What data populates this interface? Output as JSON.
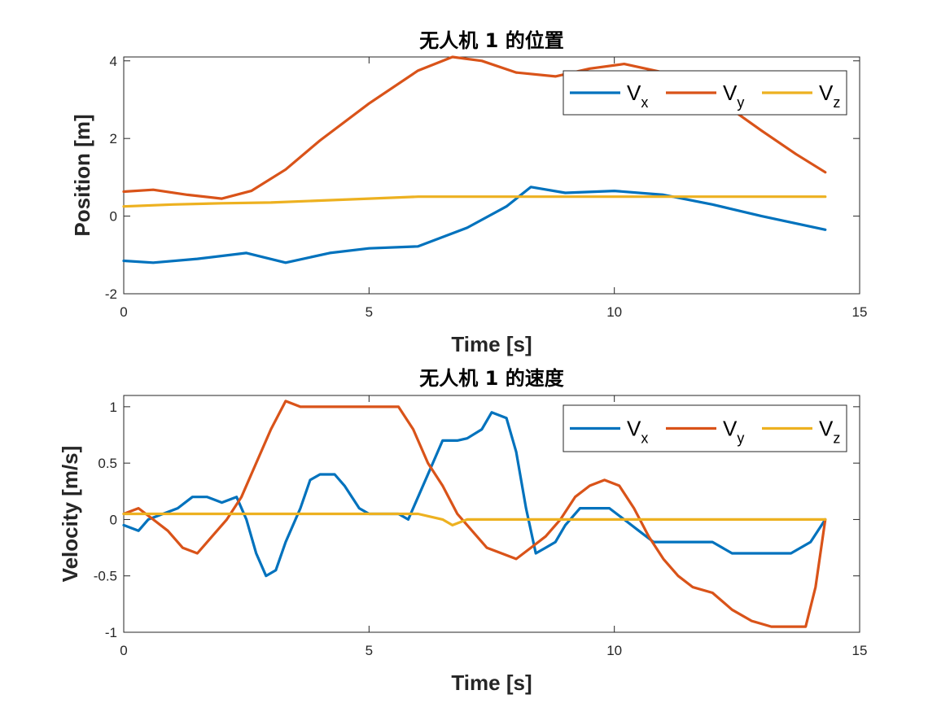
{
  "colors": {
    "Vx": "#0072BD",
    "Vy": "#D95319",
    "Vz": "#EDB120"
  },
  "chart_data": [
    {
      "type": "line",
      "title": "无人机 1 的位置",
      "xlabel": "Time [s]",
      "ylabel": "Position [m]",
      "xlim": [
        0,
        15
      ],
      "ylim": [
        -2,
        4.1
      ],
      "xticks": [
        0,
        5,
        10,
        15
      ],
      "yticks": [
        -2,
        0,
        2,
        4
      ],
      "xtick_labels": [
        "0",
        "5",
        "10",
        "15"
      ],
      "ytick_labels": [
        "-2",
        "0",
        "2",
        "4"
      ],
      "legend_position": "top-right",
      "series": [
        {
          "key": "Vx",
          "label_main": "V",
          "label_sub": "x",
          "x": [
            0,
            0.6,
            1.5,
            2.5,
            3.3,
            4.2,
            5.0,
            6.0,
            7.0,
            7.8,
            8.3,
            9.0,
            10.0,
            11.0,
            12.0,
            13.0,
            14.3
          ],
          "y": [
            -1.15,
            -1.2,
            -1.1,
            -0.95,
            -1.2,
            -0.95,
            -0.83,
            -0.78,
            -0.3,
            0.25,
            0.75,
            0.6,
            0.65,
            0.55,
            0.3,
            0.0,
            -0.35
          ]
        },
        {
          "key": "Vy",
          "label_main": "V",
          "label_sub": "y",
          "x": [
            0,
            0.6,
            1.3,
            2.0,
            2.6,
            3.3,
            4.0,
            5.0,
            6.0,
            6.7,
            7.3,
            8.0,
            8.8,
            9.5,
            10.2,
            11.0,
            12.0,
            13.0,
            13.7,
            14.3
          ],
          "y": [
            0.63,
            0.68,
            0.55,
            0.45,
            0.65,
            1.2,
            1.95,
            2.9,
            3.75,
            4.1,
            4.0,
            3.7,
            3.6,
            3.8,
            3.92,
            3.7,
            3.1,
            2.2,
            1.6,
            1.13
          ]
        },
        {
          "key": "Vz",
          "label_main": "V",
          "label_sub": "z",
          "x": [
            0,
            1.0,
            2.0,
            3.0,
            4.0,
            5.0,
            6.0,
            6.5,
            8.0,
            10.0,
            12.0,
            14.3
          ],
          "y": [
            0.25,
            0.3,
            0.33,
            0.35,
            0.4,
            0.45,
            0.5,
            0.5,
            0.5,
            0.5,
            0.5,
            0.5
          ]
        }
      ]
    },
    {
      "type": "line",
      "title": "无人机 1 的速度",
      "xlabel": "Time [s]",
      "ylabel": "Velocity [m/s]",
      "xlim": [
        0,
        15
      ],
      "ylim": [
        -1,
        1.1
      ],
      "xticks": [
        0,
        5,
        10,
        15
      ],
      "yticks": [
        -1,
        -0.5,
        0,
        0.5,
        1
      ],
      "xtick_labels": [
        "0",
        "5",
        "10",
        "15"
      ],
      "ytick_labels": [
        "-1",
        "-0.5",
        "0",
        "0.5",
        "1"
      ],
      "legend_position": "top-right",
      "series": [
        {
          "key": "Vx",
          "label_main": "V",
          "label_sub": "x",
          "x": [
            0,
            0.3,
            0.5,
            0.8,
            1.1,
            1.4,
            1.7,
            2.0,
            2.3,
            2.5,
            2.7,
            2.9,
            3.1,
            3.3,
            3.6,
            3.8,
            4.0,
            4.3,
            4.5,
            4.8,
            5.0,
            5.3,
            5.6,
            5.8,
            6.0,
            6.3,
            6.5,
            6.8,
            7.0,
            7.3,
            7.5,
            7.8,
            8.0,
            8.2,
            8.4,
            8.6,
            8.8,
            9.0,
            9.3,
            9.6,
            9.9,
            10.2,
            10.5,
            10.8,
            11.2,
            11.6,
            12.0,
            12.4,
            12.8,
            13.2,
            13.6,
            14.0,
            14.3
          ],
          "y": [
            -0.05,
            -0.1,
            0.0,
            0.05,
            0.1,
            0.2,
            0.2,
            0.15,
            0.2,
            0.0,
            -0.3,
            -0.5,
            -0.45,
            -0.2,
            0.1,
            0.35,
            0.4,
            0.4,
            0.3,
            0.1,
            0.05,
            0.05,
            0.05,
            0.0,
            0.2,
            0.5,
            0.7,
            0.7,
            0.72,
            0.8,
            0.95,
            0.9,
            0.6,
            0.1,
            -0.3,
            -0.25,
            -0.2,
            -0.05,
            0.1,
            0.1,
            0.1,
            0.0,
            -0.1,
            -0.2,
            -0.2,
            -0.2,
            -0.2,
            -0.3,
            -0.3,
            -0.3,
            -0.3,
            -0.2,
            0.0
          ]
        },
        {
          "key": "Vy",
          "label_main": "V",
          "label_sub": "y",
          "x": [
            0,
            0.3,
            0.6,
            0.9,
            1.2,
            1.5,
            1.8,
            2.1,
            2.4,
            2.7,
            3.0,
            3.3,
            3.6,
            4.0,
            4.4,
            4.8,
            5.2,
            5.6,
            5.9,
            6.2,
            6.5,
            6.8,
            7.1,
            7.4,
            7.7,
            8.0,
            8.3,
            8.6,
            8.9,
            9.2,
            9.5,
            9.8,
            10.1,
            10.4,
            10.7,
            11.0,
            11.3,
            11.6,
            12.0,
            12.4,
            12.8,
            13.2,
            13.6,
            13.9,
            14.1,
            14.3
          ],
          "y": [
            0.05,
            0.1,
            0.0,
            -0.1,
            -0.25,
            -0.3,
            -0.15,
            0.0,
            0.2,
            0.5,
            0.8,
            1.05,
            1.0,
            1.0,
            1.0,
            1.0,
            1.0,
            1.0,
            0.8,
            0.5,
            0.3,
            0.05,
            -0.1,
            -0.25,
            -0.3,
            -0.35,
            -0.25,
            -0.15,
            0.0,
            0.2,
            0.3,
            0.35,
            0.3,
            0.1,
            -0.15,
            -0.35,
            -0.5,
            -0.6,
            -0.65,
            -0.8,
            -0.9,
            -0.95,
            -0.95,
            -0.95,
            -0.6,
            0.0
          ]
        },
        {
          "key": "Vz",
          "label_main": "V",
          "label_sub": "z",
          "x": [
            0,
            1.0,
            2.0,
            3.0,
            4.0,
            5.0,
            6.0,
            6.5,
            6.7,
            7.0,
            10.0,
            14.3
          ],
          "y": [
            0.05,
            0.05,
            0.05,
            0.05,
            0.05,
            0.05,
            0.05,
            0.0,
            -0.05,
            0.0,
            0.0,
            0.0
          ]
        }
      ]
    }
  ]
}
